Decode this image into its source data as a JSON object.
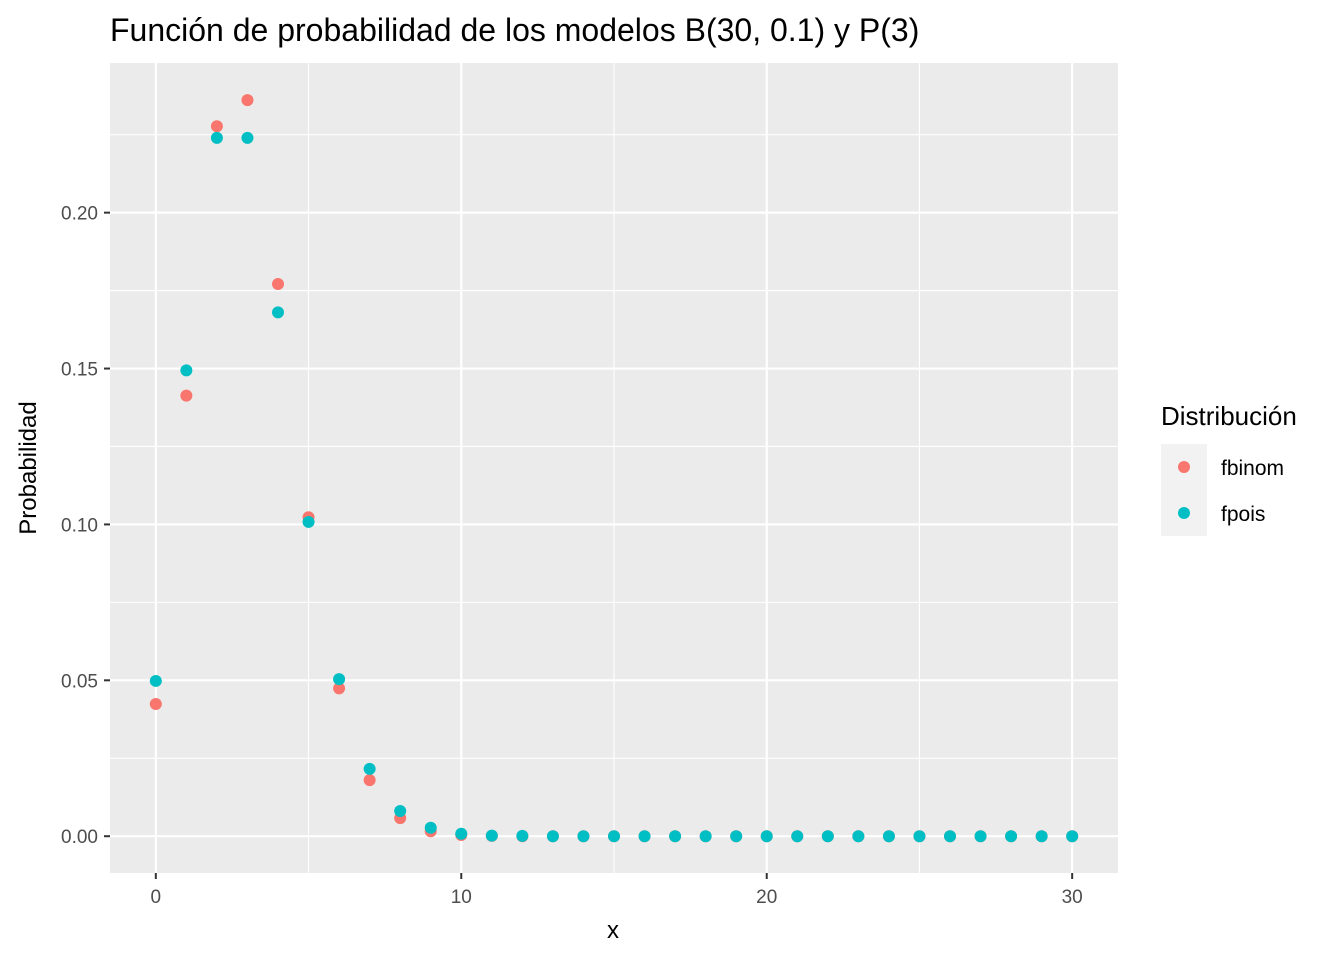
{
  "chart_data": {
    "type": "scatter",
    "title": "Función de probabilidad de los modelos B(30, 0.1) y P(3)",
    "xlabel": "x",
    "ylabel": "Probabilidad",
    "xlim": [
      -1.5,
      31.5
    ],
    "ylim": [
      -0.0118,
      0.248
    ],
    "x_ticks": [
      0,
      10,
      20,
      30
    ],
    "x_tick_labels": [
      "0",
      "10",
      "20",
      "30"
    ],
    "y_ticks": [
      0.0,
      0.05,
      0.1,
      0.15,
      0.2
    ],
    "y_tick_labels": [
      "0.00",
      "0.05",
      "0.10",
      "0.15",
      "0.20"
    ],
    "grid": true,
    "legend": {
      "title": "Distribución",
      "position": "right"
    },
    "x": [
      0,
      1,
      2,
      3,
      4,
      5,
      6,
      7,
      8,
      9,
      10,
      11,
      12,
      13,
      14,
      15,
      16,
      17,
      18,
      19,
      20,
      21,
      22,
      23,
      24,
      25,
      26,
      27,
      28,
      29,
      30
    ],
    "series": [
      {
        "name": "fbinom",
        "color": "#F8766D",
        "values": [
          0.0424,
          0.1413,
          0.2277,
          0.2361,
          0.1771,
          0.1023,
          0.0474,
          0.018,
          0.0058,
          0.0016,
          0.0004,
          0.0001,
          0.0,
          0.0,
          0.0,
          0.0,
          0.0,
          0.0,
          0.0,
          0.0,
          0.0,
          0.0,
          0.0,
          0.0,
          0.0,
          0.0,
          0.0,
          0.0,
          0.0,
          0.0,
          0.0
        ]
      },
      {
        "name": "fpois",
        "color": "#00BFC4",
        "values": [
          0.0498,
          0.1494,
          0.224,
          0.224,
          0.168,
          0.1008,
          0.0504,
          0.0216,
          0.0081,
          0.0027,
          0.0008,
          0.0002,
          0.0001,
          0.0,
          0.0,
          0.0,
          0.0,
          0.0,
          0.0,
          0.0,
          0.0,
          0.0,
          0.0,
          0.0,
          0.0,
          0.0,
          0.0,
          0.0,
          0.0,
          0.0,
          0.0
        ]
      }
    ]
  }
}
